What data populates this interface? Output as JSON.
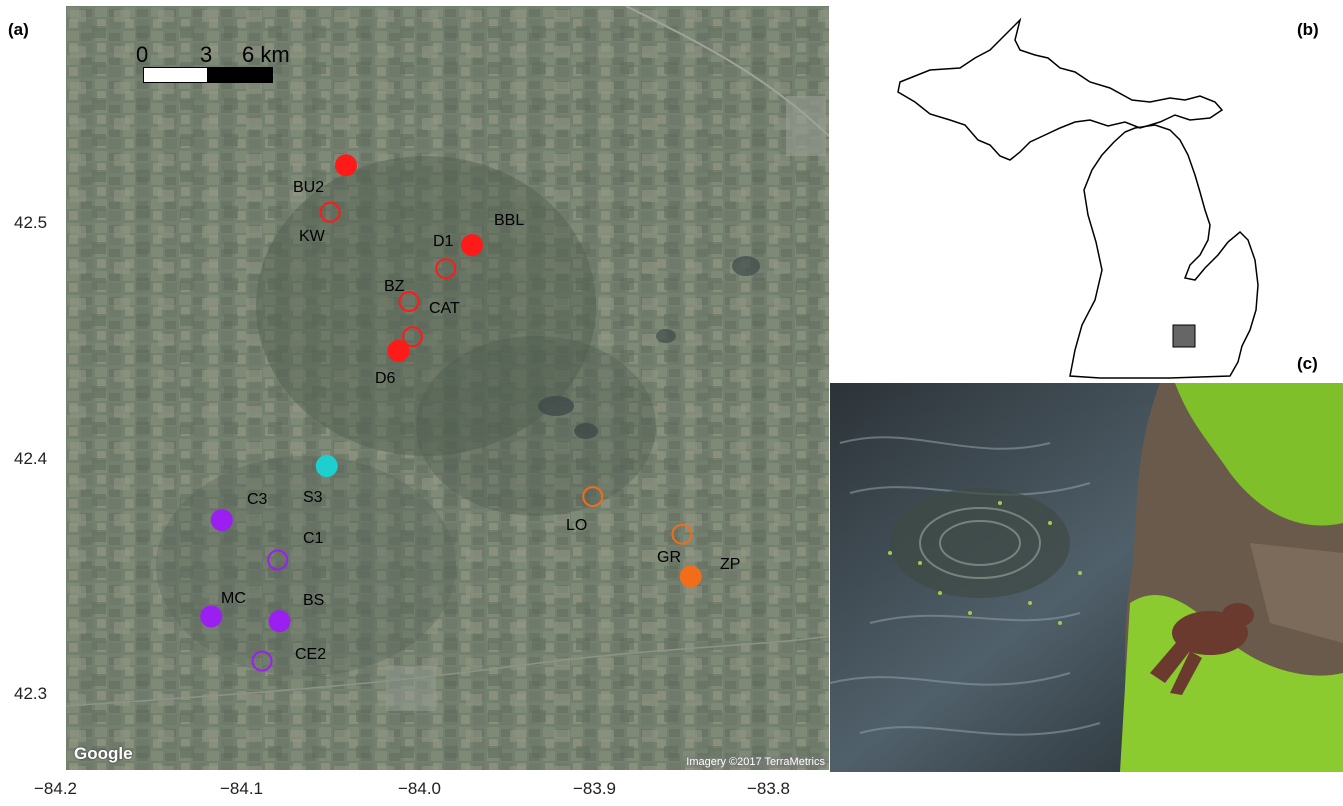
{
  "panels": {
    "a": "(a)",
    "b": "(b)",
    "c": "(c)"
  },
  "map": {
    "x_ticks": [
      "−84.2",
      "−84.1",
      "−84.0",
      "−83.9",
      "−83.8"
    ],
    "y_ticks": [
      "42.5",
      "42.4",
      "42.3"
    ],
    "scale_bar": {
      "labels": [
        "0",
        "3",
        "6 km"
      ]
    },
    "attribution": {
      "logo": "Google",
      "imagery": "Imagery ©2017 TerraMetrics"
    },
    "colors": {
      "red": "#ff1a1a",
      "cyan": "#1ecfcf",
      "orange": "#f26d1a",
      "purple": "#9b1ff0"
    },
    "sites": [
      {
        "label": "BU2",
        "lon": -84.04,
        "lat": 42.525,
        "filled": true,
        "color": "red"
      },
      {
        "label": "KW",
        "lon": -84.049,
        "lat": 42.505,
        "filled": false,
        "color": "red"
      },
      {
        "label": "D1",
        "lon": -83.983,
        "lat": 42.481,
        "filled": false,
        "color": "red"
      },
      {
        "label": "BBL",
        "lon": -83.968,
        "lat": 42.491,
        "filled": true,
        "color": "red"
      },
      {
        "label": "BZ",
        "lon": -84.004,
        "lat": 42.467,
        "filled": false,
        "color": "red"
      },
      {
        "label": "CAT",
        "lon": -84.002,
        "lat": 42.452,
        "filled": false,
        "color": "red"
      },
      {
        "label": "D6",
        "lon": -84.01,
        "lat": 42.446,
        "filled": true,
        "color": "red"
      },
      {
        "label": "S3",
        "lon": -84.051,
        "lat": 42.397,
        "filled": true,
        "color": "cyan"
      },
      {
        "label": "LO",
        "lon": -83.899,
        "lat": 42.384,
        "filled": false,
        "color": "orange"
      },
      {
        "label": "GR",
        "lon": -83.848,
        "lat": 42.368,
        "filled": false,
        "color": "orange"
      },
      {
        "label": "ZP",
        "lon": -83.843,
        "lat": 42.35,
        "filled": true,
        "color": "orange"
      },
      {
        "label": "C3",
        "lon": -84.111,
        "lat": 42.374,
        "filled": true,
        "color": "purple"
      },
      {
        "label": "C1",
        "lon": -84.079,
        "lat": 42.357,
        "filled": false,
        "color": "purple"
      },
      {
        "label": "MC",
        "lon": -84.117,
        "lat": 42.333,
        "filled": true,
        "color": "purple"
      },
      {
        "label": "BS",
        "lon": -84.078,
        "lat": 42.331,
        "filled": true,
        "color": "purple"
      },
      {
        "label": "CE2",
        "lon": -84.088,
        "lat": 42.314,
        "filled": false,
        "color": "purple"
      }
    ]
  },
  "inset": {
    "region_marker_color": "#666666"
  },
  "photo": {
    "subject": "wood frog on mossy log beside water"
  }
}
